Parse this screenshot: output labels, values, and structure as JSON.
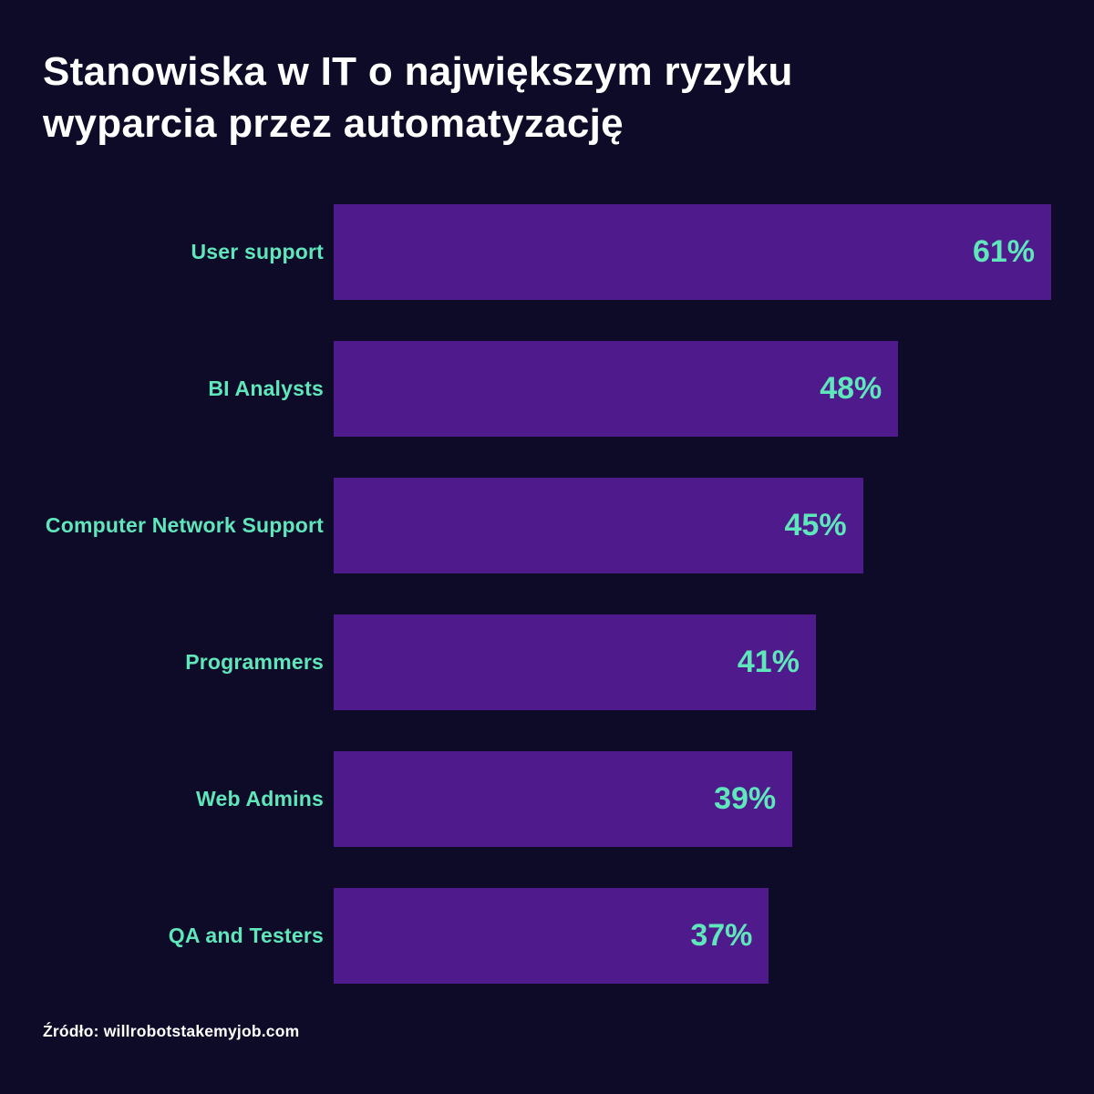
{
  "page": {
    "title_lines": [
      "Stanowiska w IT o największym ryzyku",
      "wyparcia przez automatyzację"
    ],
    "source": "Źródło: willrobotstakemyjob.com"
  },
  "colors": {
    "background": "#0d0b28",
    "bar": "#4f1a8c",
    "accent": "#5fe7bb",
    "title_text": "#ffffff"
  },
  "chart_data": {
    "type": "bar",
    "orientation": "horizontal",
    "title": "Stanowiska w IT o największym ryzyku wyparcia przez automatyzację",
    "categories": [
      "User support",
      "BI Analysts",
      "Computer Network Support",
      "Programmers",
      "Web Admins",
      "QA and Testers"
    ],
    "values": [
      61,
      48,
      45,
      41,
      39,
      37
    ],
    "value_labels": [
      "61%",
      "48%",
      "45%",
      "41%",
      "39%",
      "37%"
    ],
    "unit": "%",
    "xlim": [
      0,
      61
    ],
    "grid": false,
    "legend": false,
    "value_label_position": "inside-end",
    "source": "Źródło: willrobotstakemyjob.com"
  }
}
